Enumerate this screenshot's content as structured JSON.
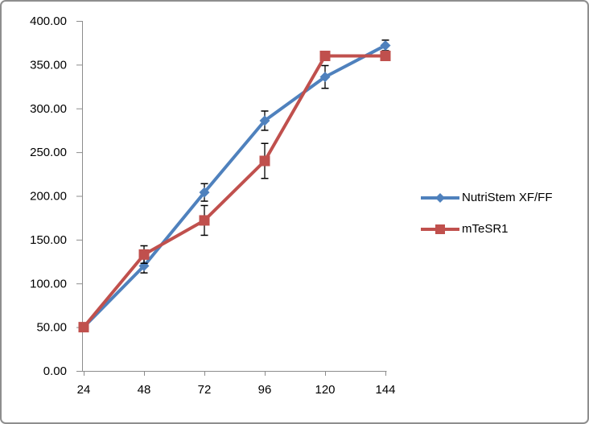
{
  "chart_data": {
    "type": "line",
    "title": "",
    "xlabel": "",
    "ylabel": "",
    "x": [
      24,
      48,
      72,
      96,
      120,
      144
    ],
    "x_tick_labels": [
      "24",
      "48",
      "72",
      "96",
      "120",
      "144"
    ],
    "ylim": [
      0,
      400
    ],
    "ytick_step": 50,
    "y_tick_labels": [
      "0.00",
      "50.00",
      "100.00",
      "150.00",
      "200.00",
      "250.00",
      "300.00",
      "350.00",
      "400.00"
    ],
    "grid": false,
    "legend_position": "right-middle",
    "axis_color": "#8c8c8c",
    "error_bar_color": "#000000",
    "tick_label_color": "#000000",
    "series": [
      {
        "name": "NutriStem XF/FF",
        "color": "#4F81BD",
        "marker": "diamond",
        "values": [
          50,
          120,
          204,
          286,
          336,
          372
        ],
        "error": [
          0,
          8,
          10,
          11,
          13,
          6
        ]
      },
      {
        "name": "mTeSR1",
        "color": "#C0504D",
        "marker": "square",
        "values": [
          50,
          133,
          172,
          240,
          360,
          360
        ],
        "error": [
          0,
          10,
          17,
          20,
          0,
          0
        ]
      }
    ]
  }
}
